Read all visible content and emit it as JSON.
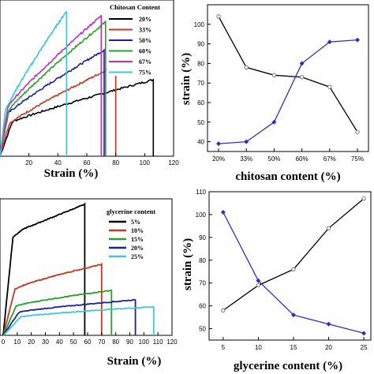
{
  "chart_data": [
    {
      "type": "line",
      "panel": "top-left",
      "xlabel": "Strain (%)",
      "ylabel": "",
      "xlim": [
        0,
        120
      ],
      "xticks": [
        "20",
        "40",
        "60",
        "80",
        "100",
        "120"
      ],
      "legend_title": "Chitosan Content",
      "legend_position": "top-right",
      "series": [
        {
          "name": "20%",
          "color": "#000000",
          "break_strain": 106,
          "end": 0.4,
          "peak": 0.49
        },
        {
          "name": "33%",
          "color": "#c0392b",
          "break_strain": 80,
          "end": 0.38,
          "peak": 0.58
        },
        {
          "name": "50%",
          "color": "#1f1fa0",
          "break_strain": 72,
          "end": 0.5,
          "peak": 0.68
        },
        {
          "name": "60%",
          "color": "#2ca02c",
          "break_strain": 73,
          "end": 0.53,
          "peak": 0.86
        },
        {
          "name": "67%",
          "color": "#c030c0",
          "break_strain": 70,
          "end": 0.58,
          "peak": 0.9
        },
        {
          "name": "75%",
          "color": "#40c8d0",
          "break_strain": 46,
          "end": 0.53,
          "peak": 0.93
        }
      ]
    },
    {
      "type": "line",
      "panel": "top-right",
      "xlabel": "chitosan content  (%)",
      "ylabel": "strain  (%)",
      "categories": [
        "20%",
        "33%",
        "50%",
        "60%",
        "67%",
        "75%"
      ],
      "ylim": [
        35,
        110
      ],
      "yticks": [
        "40",
        "50",
        "60",
        "70",
        "80",
        "90",
        "100"
      ],
      "series": [
        {
          "color": "#000000",
          "values": [
            104,
            78,
            74,
            73,
            68,
            45
          ]
        },
        {
          "color": "#3030c0",
          "values": [
            39,
            40,
            50,
            80,
            91,
            92
          ]
        }
      ]
    },
    {
      "type": "line",
      "panel": "bottom-left",
      "xlabel": "Strain (%)",
      "ylabel": "",
      "xlim": [
        0,
        120
      ],
      "xticks": [
        "0",
        "10",
        "20",
        "30",
        "40",
        "50",
        "60",
        "70",
        "80",
        "90",
        "100",
        "110",
        "120"
      ],
      "legend_title": "glycerine content",
      "legend_position": "top-right",
      "series": [
        {
          "name": "5%",
          "color": "#000000",
          "break_strain": 58,
          "end": 0.96,
          "peak": 0.96
        },
        {
          "name": "10%",
          "color": "#c0392b",
          "break_strain": 70,
          "end": 0.52,
          "peak": 0.52
        },
        {
          "name": "15%",
          "color": "#2ca02c",
          "break_strain": 77,
          "end": 0.33,
          "peak": 0.33
        },
        {
          "name": "20%",
          "color": "#1f1fa0",
          "break_strain": 94,
          "end": 0.26,
          "peak": 0.26
        },
        {
          "name": "25%",
          "color": "#40c8d0",
          "break_strain": 107,
          "end": 0.21,
          "peak": 0.21
        }
      ]
    },
    {
      "type": "line",
      "panel": "bottom-right",
      "xlabel": "glycerine content  (%)",
      "ylabel": "strain  (%)",
      "x": [
        5,
        10,
        15,
        20,
        25
      ],
      "xlim": [
        3,
        26
      ],
      "ylim": [
        45,
        110
      ],
      "xticks": [
        "5",
        "10",
        "15",
        "20",
        "25"
      ],
      "yticks": [
        "50",
        "60",
        "70",
        "80",
        "90",
        "100",
        "110"
      ],
      "series": [
        {
          "color": "#000000",
          "values": [
            58,
            69,
            76,
            94,
            107
          ]
        },
        {
          "color": "#3030c0",
          "values": [
            101,
            71,
            56,
            52,
            48
          ]
        }
      ]
    }
  ]
}
